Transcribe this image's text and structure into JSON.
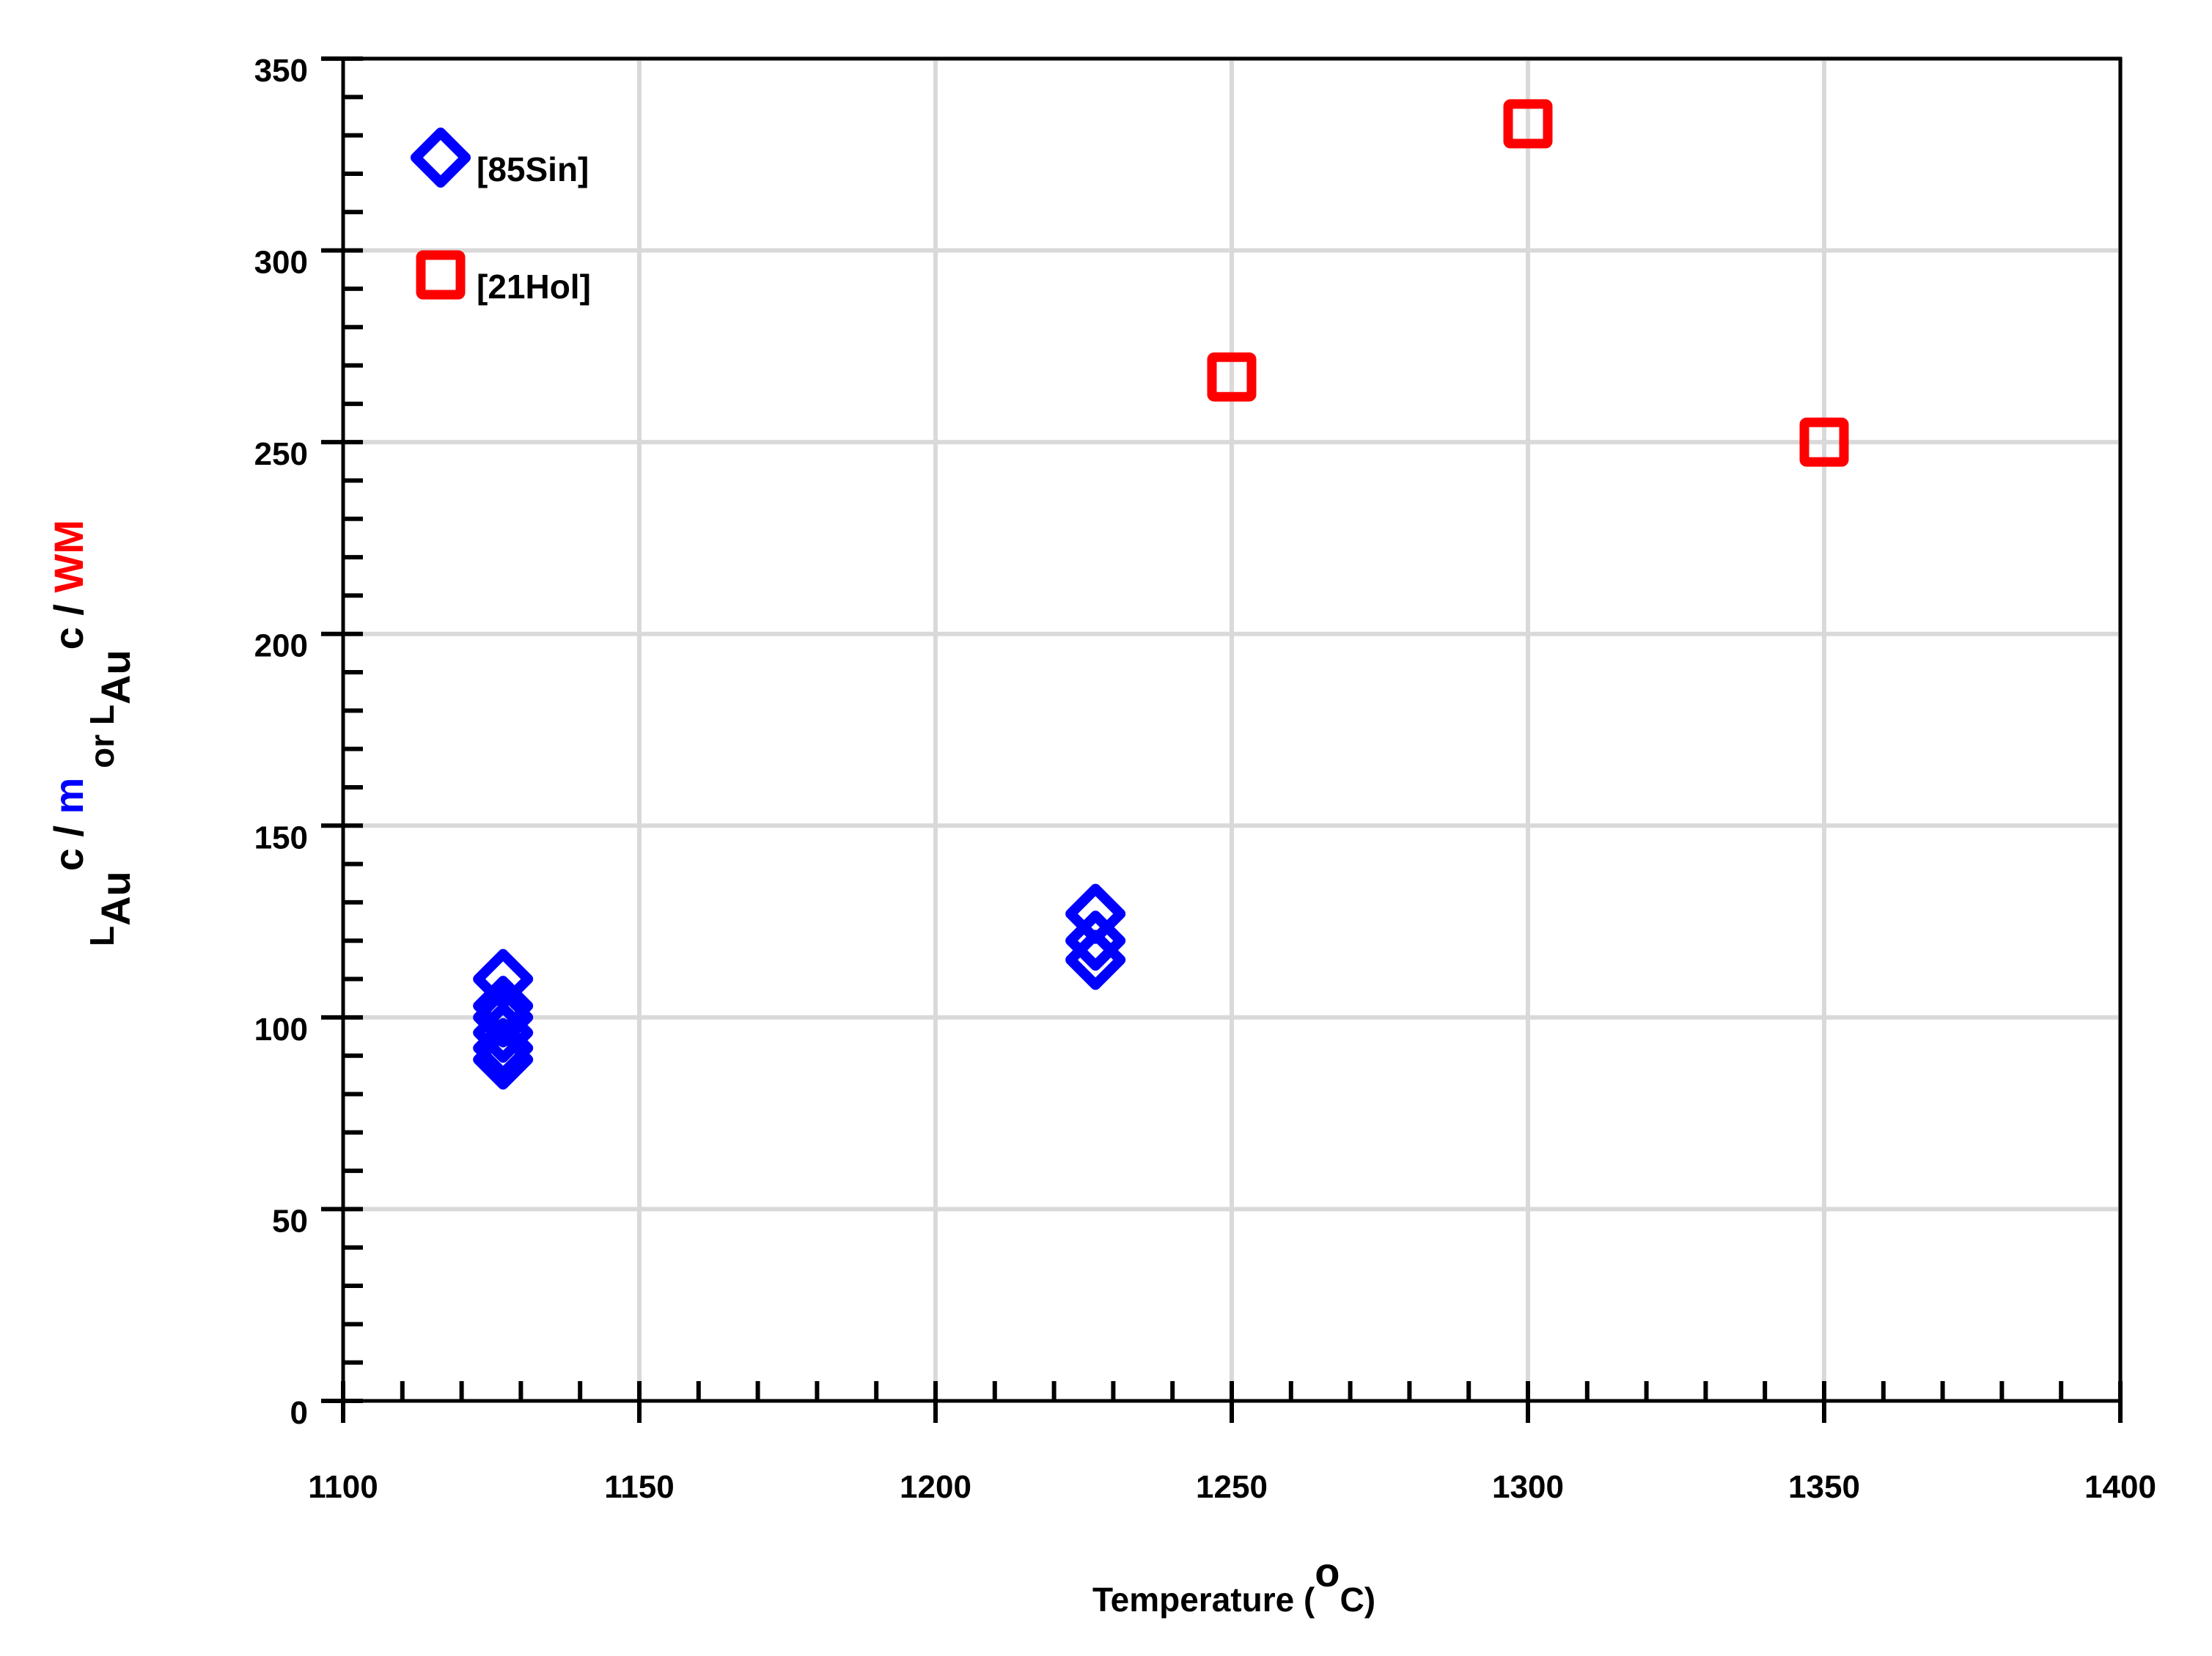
{
  "chart_data": {
    "type": "scatter",
    "title": "",
    "xlabel": "Temperature (oC)",
    "xlabel_parts": {
      "main": "Temperature (",
      "sup": "o",
      "end": "C)"
    },
    "ylabel": "L_Au^c/m or L_Au^c/WM",
    "ylabel_parts": [
      {
        "text": "L",
        "style": "base",
        "color": "#000000"
      },
      {
        "text": "Au",
        "style": "sub",
        "color": "#000000"
      },
      {
        "text": "c / ",
        "style": "sup",
        "color": "#000000"
      },
      {
        "text": "m",
        "style": "sup",
        "color": "#0000FF"
      },
      {
        "text": " or ",
        "style": "base",
        "color": "#000000"
      },
      {
        "text": "L",
        "style": "base",
        "color": "#000000"
      },
      {
        "text": "Au",
        "style": "sub",
        "color": "#000000"
      },
      {
        "text": "c / ",
        "style": "sup",
        "color": "#000000"
      },
      {
        "text": "WM",
        "style": "sup",
        "color": "#FF0000"
      }
    ],
    "xlim": [
      1100,
      1400
    ],
    "ylim": [
      0,
      350
    ],
    "xticks": [
      1100,
      1150,
      1200,
      1250,
      1300,
      1350,
      1400
    ],
    "yticks": [
      0,
      50,
      100,
      150,
      200,
      250,
      300,
      350
    ],
    "grid": true,
    "legend_position": "upper-left inside",
    "series": [
      {
        "name": "[85Sin]",
        "marker": "diamond-open",
        "color": "#0000FF",
        "x": [
          1127,
          1127,
          1127,
          1127,
          1127,
          1127,
          1227,
          1227,
          1227
        ],
        "y": [
          110,
          103,
          100,
          96,
          92,
          89,
          127,
          120,
          115
        ]
      },
      {
        "name": "[21Hol]",
        "marker": "square-open",
        "color": "#FF0000",
        "x": [
          1250,
          1300,
          1350
        ],
        "y": [
          267,
          333,
          250
        ]
      }
    ]
  },
  "legend": {
    "items": [
      {
        "label": "[85Sin]",
        "color": "#0000FF"
      },
      {
        "label": "[21Hol]",
        "color": "#FF0000"
      }
    ]
  },
  "colors": {
    "grid": "#D9D9D9",
    "axis": "#000000"
  }
}
